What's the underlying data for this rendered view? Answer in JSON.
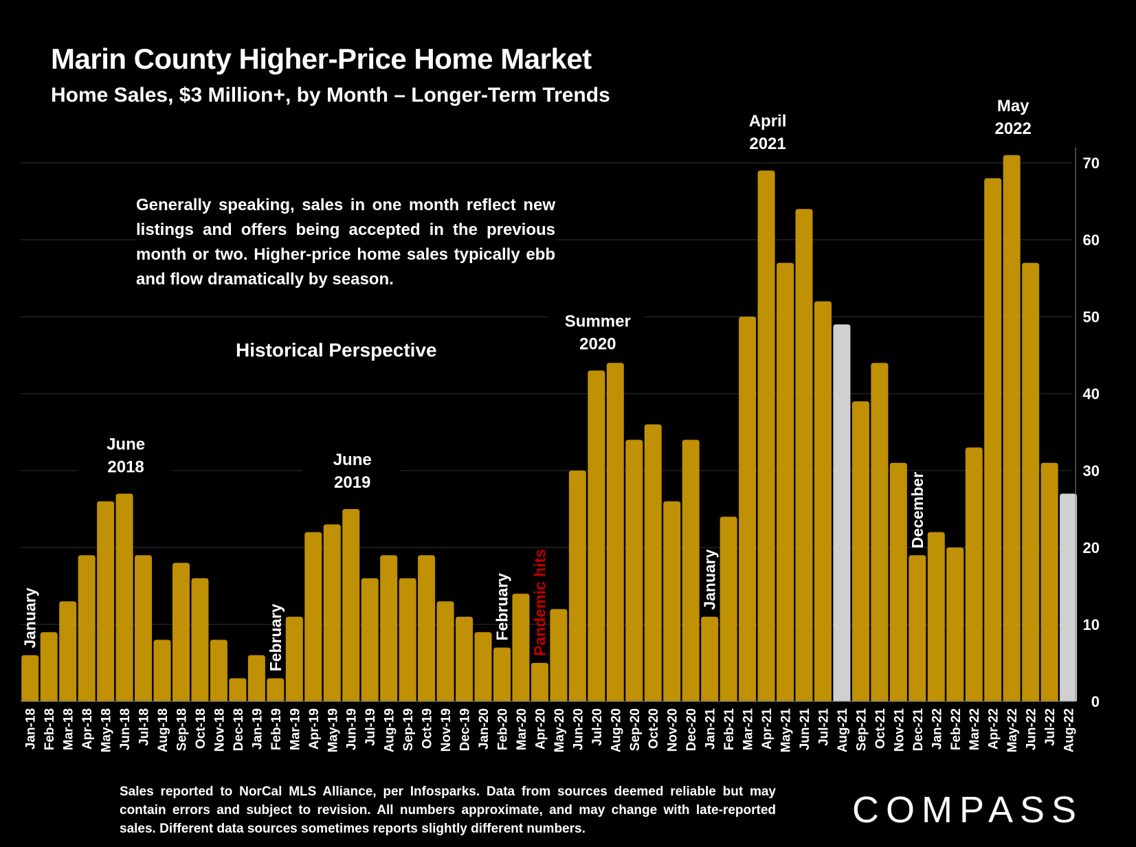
{
  "header": {
    "title": "Marin County Higher-Price Home Market",
    "subtitle": "Home Sales, $3 Million+, by Month – Longer-Term Trends"
  },
  "note": "Generally speaking, sales in one month reflect new listings and offers being accepted in the previous month or two. Higher-price home sales typically ebb and flow dramatically by season.",
  "perspective_label": "Historical Perspective",
  "footnote": "Sales reported to NorCal MLS Alliance, per Infosparks. Data from sources deemed reliable but may contain errors and subject to revision. All numbers approximate, and may change with late-reported sales. Different data sources sometimes reports slightly different numbers.",
  "logo": "COMPASS",
  "colors": {
    "bar": "#C09005",
    "highlight": "#D0D0D0",
    "alert": "#C00000",
    "grid": "#333333"
  },
  "chart_data": {
    "type": "bar",
    "categories": [
      "Jan-18",
      "Feb-18",
      "Mar-18",
      "Apr-18",
      "May-18",
      "Jun-18",
      "Jul-18",
      "Aug-18",
      "Sep-18",
      "Oct-18",
      "Nov-18",
      "Dec-18",
      "Jan-19",
      "Feb-19",
      "Mar-19",
      "Apr-19",
      "May-19",
      "Jun-19",
      "Jul-19",
      "Aug-19",
      "Sep-19",
      "Oct-19",
      "Nov-19",
      "Dec-19",
      "Jan-20",
      "Feb-20",
      "Mar-20",
      "Apr-20",
      "May-20",
      "Jun-20",
      "Jul-20",
      "Aug-20",
      "Sep-20",
      "Oct-20",
      "Nov-20",
      "Dec-20",
      "Jan-21",
      "Feb-21",
      "Mar-21",
      "Apr-21",
      "May-21",
      "Jun-21",
      "Jul-21",
      "Aug-21",
      "Sep-21",
      "Oct-21",
      "Nov-21",
      "Dec-21",
      "Jan-22",
      "Feb-22",
      "Mar-22",
      "Apr-22",
      "May-22",
      "Jun-22",
      "Jul-22",
      "Aug-22"
    ],
    "values": [
      6,
      9,
      13,
      19,
      26,
      27,
      19,
      8,
      18,
      16,
      8,
      3,
      6,
      3,
      11,
      22,
      23,
      25,
      16,
      19,
      16,
      19,
      13,
      11,
      9,
      7,
      14,
      5,
      12,
      30,
      43,
      44,
      34,
      36,
      26,
      34,
      11,
      24,
      50,
      69,
      57,
      64,
      52,
      49,
      39,
      44,
      31,
      19,
      22,
      20,
      33,
      68,
      71,
      57,
      31,
      27
    ],
    "highlighted_categories": [
      "Aug-21",
      "Aug-22"
    ],
    "ylim": [
      0,
      70
    ],
    "yticks": [
      0,
      10,
      20,
      30,
      40,
      50,
      60,
      70
    ],
    "y_axis_side": "right",
    "grid": true,
    "annotations": [
      {
        "text": "June 2018",
        "category": "Jun-18",
        "style": "horizontal"
      },
      {
        "text": "June 2019",
        "category": "Jun-19",
        "style": "horizontal"
      },
      {
        "text": "Summer 2020",
        "category": "Jul-20",
        "style": "horizontal"
      },
      {
        "text": "April 2021",
        "category": "Apr-21",
        "style": "horizontal"
      },
      {
        "text": "May 2022",
        "category": "May-22",
        "style": "horizontal"
      },
      {
        "text": "January",
        "category": "Jan-18",
        "style": "vertical"
      },
      {
        "text": "February",
        "category": "Feb-19",
        "style": "vertical"
      },
      {
        "text": "February",
        "category": "Feb-20",
        "style": "vertical"
      },
      {
        "text": "Pandemic hits",
        "category": "Apr-20",
        "style": "vertical",
        "color": "alert"
      },
      {
        "text": "January",
        "category": "Jan-21",
        "style": "vertical"
      },
      {
        "text": "December",
        "category": "Dec-21",
        "style": "vertical"
      }
    ]
  }
}
